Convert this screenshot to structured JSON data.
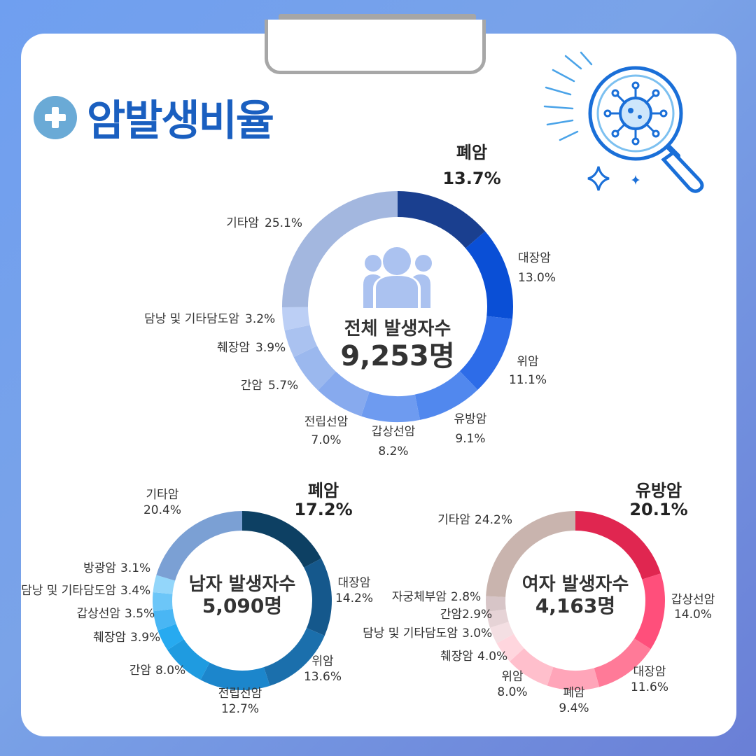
{
  "title": "암발생비율",
  "chart_data": [
    {
      "type": "pie",
      "center_label": "전체 발생자수",
      "center_value": "9,253명",
      "labels": [
        "폐암",
        "대장암",
        "위암",
        "유방암",
        "갑상선암",
        "전립선암",
        "간암",
        "췌장암",
        "담낭 및 기타담도암",
        "기타암"
      ],
      "values": [
        13.7,
        13.0,
        11.1,
        9.1,
        8.2,
        7.0,
        5.7,
        3.9,
        3.2,
        25.1
      ],
      "colors": [
        "#1a3f8f",
        "#0a4fd6",
        "#2d6ce8",
        "#5188ee",
        "#6e9bf0",
        "#87aaee",
        "#9bb8ee",
        "#aac2f0",
        "#bccff5",
        "#a3b7df"
      ],
      "display": [
        "13.7%",
        "13.0%",
        "11.1%",
        "9.1%",
        "8.2%",
        "7.0%",
        "5.7%",
        "3.9%",
        "3.2%",
        "25.1%"
      ]
    },
    {
      "type": "pie",
      "center_label": "남자 발생자수",
      "center_value": "5,090명",
      "labels": [
        "폐암",
        "대장암",
        "위암",
        "전립선암",
        "간암",
        "췌장암",
        "갑상선암",
        "담낭 및 기타담도암",
        "방광암",
        "기타암"
      ],
      "values": [
        17.2,
        14.2,
        13.6,
        12.7,
        8.0,
        3.9,
        3.5,
        3.4,
        3.1,
        20.4
      ],
      "colors": [
        "#0d4063",
        "#15588c",
        "#1b6fac",
        "#1c86cc",
        "#1f9be0",
        "#27aaf0",
        "#49b6f4",
        "#6cc6f8",
        "#93d6fa",
        "#7ba0d4"
      ],
      "display": [
        "17.2%",
        "14.2%",
        "13.6%",
        "12.7%",
        "8.0%",
        "3.9%",
        "3.5%",
        "3.4%",
        "3.1%",
        "20.4%"
      ]
    },
    {
      "type": "pie",
      "center_label": "여자 발생자수",
      "center_value": "4,163명",
      "labels": [
        "유방암",
        "갑상선암",
        "대장암",
        "폐암",
        "위암",
        "췌장암",
        "담낭 및 기타담도암",
        "간암",
        "자궁체부암",
        "기타암"
      ],
      "values": [
        20.1,
        14.0,
        11.6,
        9.4,
        8.0,
        4.0,
        3.0,
        2.9,
        2.8,
        24.2
      ],
      "colors": [
        "#e02650",
        "#ff4f7b",
        "#ff7a98",
        "#ffa5b9",
        "#ffbfcc",
        "#ffd6de",
        "#f4dfe3",
        "#e6d3d6",
        "#d7c5c7",
        "#c9b4ae"
      ],
      "display": [
        "20.1%",
        "14.0%",
        "11.6%",
        "9.4%",
        "8.0%",
        "4.0%",
        "3.0%",
        "2.9%",
        "2.8%",
        "24.2%"
      ]
    }
  ]
}
